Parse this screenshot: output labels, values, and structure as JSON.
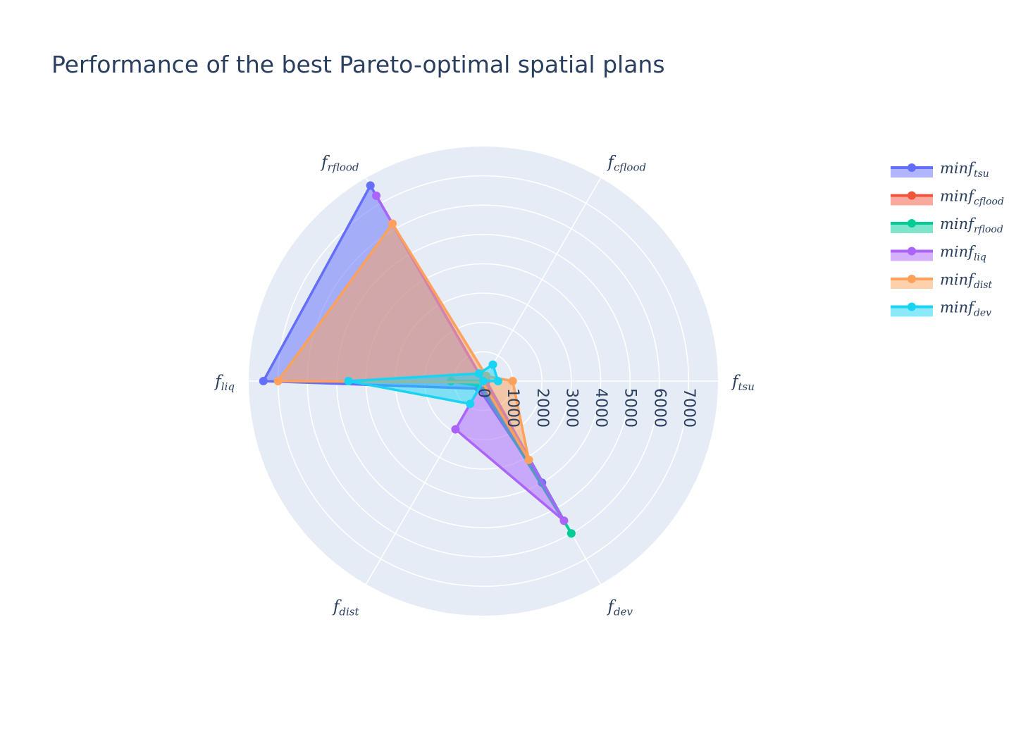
{
  "chart_data": {
    "type": "radar",
    "title": "Performance of the best Pareto-optimal spatial plans",
    "axes": [
      {
        "base": "f",
        "sub": "tsu"
      },
      {
        "base": "f",
        "sub": "cflood"
      },
      {
        "base": "f",
        "sub": "rflood"
      },
      {
        "base": "f",
        "sub": "liq"
      },
      {
        "base": "f",
        "sub": "dist"
      },
      {
        "base": "f",
        "sub": "dev"
      }
    ],
    "radial_ticks": [
      "0",
      "1000",
      "2000",
      "3000",
      "4000",
      "5000",
      "6000",
      "7000"
    ],
    "radial_range": [
      0,
      8000
    ],
    "grid": true,
    "legend_position": "top-right",
    "series": [
      {
        "name_base": "minf",
        "name_sub": "tsu",
        "color": "#636efa",
        "values": [
          0,
          0,
          7700,
          7500,
          300,
          4000
        ]
      },
      {
        "name_base": "minf",
        "name_sub": "cflood",
        "color": "#ef553b",
        "values": [
          0,
          0,
          0,
          0,
          0,
          0
        ]
      },
      {
        "name_base": "minf",
        "name_sub": "rflood",
        "color": "#00cc96",
        "values": [
          100,
          0,
          0,
          1100,
          200,
          6000
        ]
      },
      {
        "name_base": "minf",
        "name_sub": "liq",
        "color": "#ab63fa",
        "values": [
          100,
          0,
          7300,
          0,
          1900,
          5500
        ]
      },
      {
        "name_base": "minf",
        "name_sub": "dist",
        "color": "#ffa15a",
        "values": [
          1000,
          200,
          6200,
          7000,
          50,
          3100
        ]
      },
      {
        "name_base": "minf",
        "name_sub": "dev",
        "color": "#19d3f3",
        "values": [
          500,
          650,
          300,
          4600,
          900,
          0
        ]
      }
    ]
  }
}
